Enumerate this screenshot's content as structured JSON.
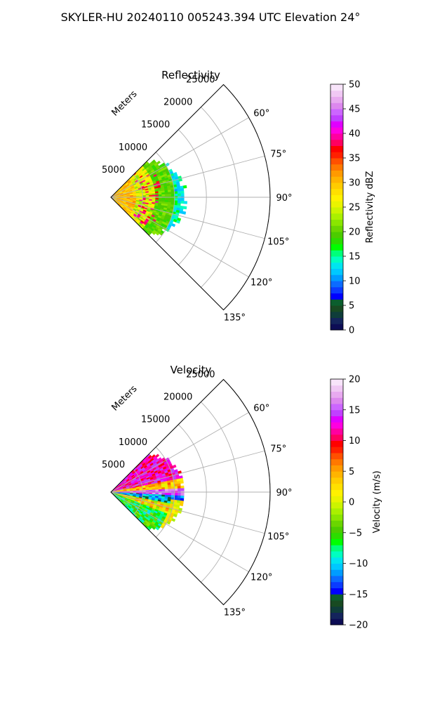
{
  "figure": {
    "title": "SKYLER-HU  20240110  005243.394 UTC Elevation 24°"
  },
  "chart_data": [
    {
      "type": "heatmap",
      "projection": "polar-sector",
      "title": "Reflectivity",
      "range_label": "Meters",
      "range_ticks": [
        5000,
        10000,
        15000,
        20000,
        25000
      ],
      "range_tick_labels": [
        "5000",
        "10000",
        "15000",
        "20000",
        "25000"
      ],
      "range_max": 25000,
      "azimuth_range_deg": [
        45,
        135
      ],
      "azimuth_ticks": [
        60,
        75,
        90,
        105,
        120,
        135
      ],
      "azimuth_tick_labels": [
        "60°",
        "75°",
        "90°",
        "105°",
        "120°",
        "135°"
      ],
      "grid": true,
      "data_extent_m": 11500,
      "colorbar": {
        "label": "Reflectivity dBZ",
        "min": 0,
        "max": 50,
        "ticks": [
          0,
          5,
          10,
          15,
          20,
          25,
          30,
          35,
          40,
          45,
          50
        ],
        "tick_labels": [
          "0",
          "5",
          "10",
          "15",
          "20",
          "25",
          "30",
          "35",
          "40",
          "45",
          "50"
        ],
        "colors": [
          "#0d0d55",
          "#14245c",
          "#0f3d3a",
          "#184a22",
          "#0b5e2e",
          "#0000ff",
          "#0b3bff",
          "#0b6bff",
          "#009cff",
          "#00c8ff",
          "#00e5f0",
          "#00ffc0",
          "#00ff7a",
          "#00ff00",
          "#2cdc00",
          "#4ccc00",
          "#6ad600",
          "#8ae600",
          "#aaf000",
          "#ccf400",
          "#eaf400",
          "#fff200",
          "#ffe000",
          "#ffcc00",
          "#ffb400",
          "#ff9a00",
          "#ff7800",
          "#ff5000",
          "#ff2000",
          "#ff0000",
          "#ff0060",
          "#ff00a0",
          "#ff00e0",
          "#e000ff",
          "#c040ff",
          "#cc66ff",
          "#dd88ee",
          "#e8aaf0",
          "#f0c8f4",
          "#f8e4fa"
        ]
      }
    },
    {
      "type": "heatmap",
      "projection": "polar-sector",
      "title": "Velocity",
      "range_label": "Meters",
      "range_ticks": [
        5000,
        10000,
        15000,
        20000,
        25000
      ],
      "range_tick_labels": [
        "5000",
        "10000",
        "15000",
        "20000",
        "25000"
      ],
      "range_max": 25000,
      "azimuth_range_deg": [
        45,
        135
      ],
      "azimuth_ticks": [
        60,
        75,
        90,
        105,
        120,
        135
      ],
      "azimuth_tick_labels": [
        "60°",
        "75°",
        "90°",
        "105°",
        "120°",
        "135°"
      ],
      "grid": true,
      "data_extent_m": 11500,
      "colorbar": {
        "label": "Velocity (m/s)",
        "min": -20,
        "max": 20,
        "ticks": [
          -20,
          -15,
          -10,
          -5,
          0,
          5,
          10,
          15,
          20
        ],
        "tick_labels": [
          "−20",
          "−15",
          "−10",
          "−5",
          "0",
          "5",
          "10",
          "15",
          "20"
        ],
        "colors": [
          "#0d0d55",
          "#14245c",
          "#0f3d3a",
          "#184a22",
          "#0b5e2e",
          "#0000ff",
          "#0b3bff",
          "#0b6bff",
          "#009cff",
          "#00c8ff",
          "#00e5f0",
          "#00ffc0",
          "#00ff7a",
          "#00ff00",
          "#2cdc00",
          "#4ccc00",
          "#6ad600",
          "#8ae600",
          "#aaf000",
          "#ccf400",
          "#eaf400",
          "#fff200",
          "#ffe000",
          "#ffcc00",
          "#ffb400",
          "#ff9a00",
          "#ff7800",
          "#ff5000",
          "#ff2000",
          "#ff0000",
          "#ff0060",
          "#ff00a0",
          "#ff00e0",
          "#e000ff",
          "#c040ff",
          "#cc66ff",
          "#dd88ee",
          "#e8aaf0",
          "#f0c8f4",
          "#f8e4fa"
        ]
      }
    }
  ]
}
